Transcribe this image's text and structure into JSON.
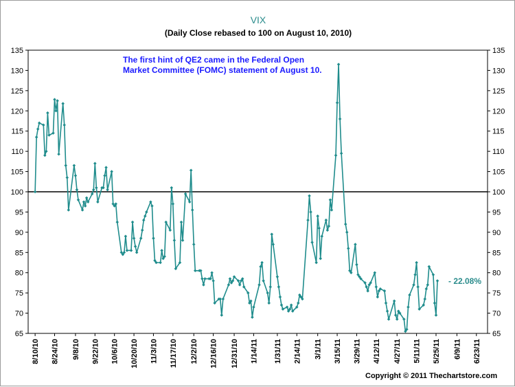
{
  "chart_data": {
    "type": "line",
    "title": "VIX",
    "subtitle": "(Daily Close rebased to 100 on August 10, 2010)",
    "annotation_lines": [
      "The first hint of QE2 came in the Federal Open",
      "Market Committee (FOMC) statement of August 10."
    ],
    "end_label": "- 22.08%",
    "copyright": "Copyright © 2011 Thechartstore.com",
    "ylim": [
      65,
      135
    ],
    "yticks": [
      65,
      70,
      75,
      80,
      85,
      90,
      95,
      100,
      105,
      110,
      115,
      120,
      125,
      130,
      135
    ],
    "reference_line": 100,
    "x_range": [
      "2010-08-05",
      "2011-07-01"
    ],
    "xticks": [
      "8/10/10",
      "8/24/10",
      "9/8/10",
      "9/22/10",
      "10/6/10",
      "10/20/10",
      "11/3/10",
      "11/17/10",
      "12/2/10",
      "12/16/10",
      "12/31/10",
      "1/14/11",
      "1/31/11",
      "2/14/11",
      "3/1/11",
      "3/15/11",
      "3/29/11",
      "4/12/11",
      "4/27/11",
      "5/11/11",
      "5/25/11",
      "6/9/11",
      "6/23/11"
    ],
    "line_color": "#1f8c8c",
    "reference_color": "#000000",
    "grid": false,
    "series": [
      {
        "values": [
          [
            "2010-08-10",
            100.0
          ],
          [
            "2010-08-11",
            113.5
          ],
          [
            "2010-08-12",
            115.5
          ],
          [
            "2010-08-13",
            117.0
          ],
          [
            "2010-08-16",
            116.5
          ],
          [
            "2010-08-17",
            109.0
          ],
          [
            "2010-08-18",
            110.0
          ],
          [
            "2010-08-19",
            119.5
          ],
          [
            "2010-08-20",
            114.0
          ],
          [
            "2010-08-23",
            114.5
          ],
          [
            "2010-08-24",
            122.8
          ],
          [
            "2010-08-25",
            120.0
          ],
          [
            "2010-08-26",
            122.5
          ],
          [
            "2010-08-27",
            109.3
          ],
          [
            "2010-08-30",
            121.8
          ],
          [
            "2010-08-31",
            116.5
          ],
          [
            "2010-09-01",
            106.5
          ],
          [
            "2010-09-02",
            103.5
          ],
          [
            "2010-09-03",
            95.5
          ],
          [
            "2010-09-07",
            106.5
          ],
          [
            "2010-09-08",
            104.0
          ],
          [
            "2010-09-09",
            100.5
          ],
          [
            "2010-09-10",
            98.0
          ],
          [
            "2010-09-13",
            95.5
          ],
          [
            "2010-09-14",
            97.5
          ],
          [
            "2010-09-15",
            96.5
          ],
          [
            "2010-09-16",
            98.5
          ],
          [
            "2010-09-17",
            97.5
          ],
          [
            "2010-09-20",
            99.5
          ],
          [
            "2010-09-21",
            100.5
          ],
          [
            "2010-09-22",
            107.0
          ],
          [
            "2010-09-23",
            101.0
          ],
          [
            "2010-09-24",
            97.5
          ],
          [
            "2010-09-27",
            101.0
          ],
          [
            "2010-09-28",
            101.0
          ],
          [
            "2010-09-29",
            104.0
          ],
          [
            "2010-09-30",
            106.0
          ],
          [
            "2010-10-01",
            100.5
          ],
          [
            "2010-10-04",
            105.0
          ],
          [
            "2010-10-05",
            97.0
          ],
          [
            "2010-10-06",
            96.5
          ],
          [
            "2010-10-07",
            97.0
          ],
          [
            "2010-10-08",
            92.5
          ],
          [
            "2010-10-11",
            85.0
          ],
          [
            "2010-10-12",
            84.5
          ],
          [
            "2010-10-13",
            85.0
          ],
          [
            "2010-10-14",
            89.0
          ],
          [
            "2010-10-15",
            85.5
          ],
          [
            "2010-10-18",
            85.5
          ],
          [
            "2010-10-19",
            92.5
          ],
          [
            "2010-10-20",
            88.5
          ],
          [
            "2010-10-21",
            86.5
          ],
          [
            "2010-10-22",
            85.0
          ],
          [
            "2010-10-25",
            88.5
          ],
          [
            "2010-10-26",
            90.5
          ],
          [
            "2010-10-27",
            93.0
          ],
          [
            "2010-10-28",
            94.0
          ],
          [
            "2010-10-29",
            95.0
          ],
          [
            "2010-11-01",
            97.5
          ],
          [
            "2010-11-02",
            96.5
          ],
          [
            "2010-11-03",
            88.5
          ],
          [
            "2010-11-04",
            83.0
          ],
          [
            "2010-11-05",
            82.5
          ],
          [
            "2010-11-08",
            82.5
          ],
          [
            "2010-11-09",
            85.5
          ],
          [
            "2010-11-10",
            83.5
          ],
          [
            "2010-11-11",
            84.0
          ],
          [
            "2010-11-12",
            92.5
          ],
          [
            "2010-11-15",
            90.5
          ],
          [
            "2010-11-16",
            101.0
          ],
          [
            "2010-11-17",
            97.0
          ],
          [
            "2010-11-18",
            88.0
          ],
          [
            "2010-11-19",
            81.0
          ],
          [
            "2010-11-22",
            82.5
          ],
          [
            "2010-11-23",
            92.5
          ],
          [
            "2010-11-24",
            88.0
          ],
          [
            "2010-11-26",
            99.5
          ],
          [
            "2010-11-29",
            97.5
          ],
          [
            "2010-11-30",
            105.3
          ],
          [
            "2010-12-01",
            95.5
          ],
          [
            "2010-12-02",
            87.0
          ],
          [
            "2010-12-03",
            80.5
          ],
          [
            "2010-12-06",
            80.5
          ],
          [
            "2010-12-07",
            80.5
          ],
          [
            "2010-12-08",
            78.5
          ],
          [
            "2010-12-09",
            77.0
          ],
          [
            "2010-12-10",
            78.5
          ],
          [
            "2010-12-13",
            78.5
          ],
          [
            "2010-12-14",
            78.5
          ],
          [
            "2010-12-15",
            80.0
          ],
          [
            "2010-12-16",
            78.0
          ],
          [
            "2010-12-17",
            72.5
          ],
          [
            "2010-12-20",
            73.5
          ],
          [
            "2010-12-21",
            73.5
          ],
          [
            "2010-12-22",
            69.5
          ],
          [
            "2010-12-23",
            73.5
          ],
          [
            "2010-12-27",
            77.0
          ],
          [
            "2010-12-28",
            78.5
          ],
          [
            "2010-12-29",
            77.5
          ],
          [
            "2010-12-30",
            78.0
          ],
          [
            "2010-12-31",
            79.0
          ],
          [
            "2011-01-03",
            78.0
          ],
          [
            "2011-01-04",
            77.0
          ],
          [
            "2011-01-05",
            78.0
          ],
          [
            "2011-01-06",
            78.5
          ],
          [
            "2011-01-07",
            76.5
          ],
          [
            "2011-01-10",
            75.0
          ],
          [
            "2011-01-11",
            72.5
          ],
          [
            "2011-01-12",
            73.0
          ],
          [
            "2011-01-13",
            69.0
          ],
          [
            "2011-01-14",
            71.5
          ],
          [
            "2011-01-18",
            77.0
          ],
          [
            "2011-01-19",
            81.5
          ],
          [
            "2011-01-20",
            82.5
          ],
          [
            "2011-01-21",
            78.0
          ],
          [
            "2011-01-24",
            75.0
          ],
          [
            "2011-01-25",
            72.5
          ],
          [
            "2011-01-26",
            76.5
          ],
          [
            "2011-01-27",
            89.5
          ],
          [
            "2011-01-28",
            87.0
          ],
          [
            "2011-01-31",
            79.0
          ],
          [
            "2011-02-01",
            76.5
          ],
          [
            "2011-02-02",
            74.0
          ],
          [
            "2011-02-03",
            72.0
          ],
          [
            "2011-02-04",
            71.0
          ],
          [
            "2011-02-07",
            71.5
          ],
          [
            "2011-02-08",
            70.5
          ],
          [
            "2011-02-09",
            71.0
          ],
          [
            "2011-02-10",
            72.0
          ],
          [
            "2011-02-11",
            70.5
          ],
          [
            "2011-02-14",
            71.5
          ],
          [
            "2011-02-15",
            72.5
          ],
          [
            "2011-02-16",
            74.5
          ],
          [
            "2011-02-17",
            74.0
          ],
          [
            "2011-02-18",
            73.5
          ],
          [
            "2011-02-22",
            93.0
          ],
          [
            "2011-02-23",
            99.0
          ],
          [
            "2011-02-24",
            95.0
          ],
          [
            "2011-02-25",
            87.5
          ],
          [
            "2011-02-28",
            82.5
          ],
          [
            "2011-03-01",
            94.0
          ],
          [
            "2011-03-02",
            91.0
          ],
          [
            "2011-03-03",
            83.5
          ],
          [
            "2011-03-04",
            89.0
          ],
          [
            "2011-03-07",
            93.0
          ],
          [
            "2011-03-08",
            90.5
          ],
          [
            "2011-03-09",
            91.5
          ],
          [
            "2011-03-10",
            98.0
          ],
          [
            "2011-03-11",
            95.5
          ],
          [
            "2011-03-14",
            109.0
          ],
          [
            "2011-03-15",
            122.0
          ],
          [
            "2011-03-16",
            131.5
          ],
          [
            "2011-03-17",
            118.0
          ],
          [
            "2011-03-18",
            109.5
          ],
          [
            "2011-03-21",
            92.0
          ],
          [
            "2011-03-22",
            90.0
          ],
          [
            "2011-03-23",
            86.0
          ],
          [
            "2011-03-24",
            80.5
          ],
          [
            "2011-03-25",
            80.0
          ],
          [
            "2011-03-28",
            87.0
          ],
          [
            "2011-03-29",
            82.0
          ],
          [
            "2011-03-30",
            79.5
          ],
          [
            "2011-03-31",
            79.0
          ],
          [
            "2011-04-01",
            78.5
          ],
          [
            "2011-04-04",
            77.5
          ],
          [
            "2011-04-05",
            76.5
          ],
          [
            "2011-04-06",
            75.5
          ],
          [
            "2011-04-07",
            77.0
          ],
          [
            "2011-04-08",
            77.5
          ],
          [
            "2011-04-11",
            80.0
          ],
          [
            "2011-04-12",
            76.5
          ],
          [
            "2011-04-13",
            74.0
          ],
          [
            "2011-04-14",
            75.5
          ],
          [
            "2011-04-15",
            76.0
          ],
          [
            "2011-04-18",
            75.5
          ],
          [
            "2011-04-19",
            72.5
          ],
          [
            "2011-04-20",
            70.5
          ],
          [
            "2011-04-21",
            68.5
          ],
          [
            "2011-04-25",
            73.0
          ],
          [
            "2011-04-26",
            69.5
          ],
          [
            "2011-04-27",
            68.5
          ],
          [
            "2011-04-28",
            70.5
          ],
          [
            "2011-04-29",
            70.0
          ],
          [
            "2011-05-02",
            68.5
          ],
          [
            "2011-05-03",
            65.5
          ],
          [
            "2011-05-04",
            66.0
          ],
          [
            "2011-05-05",
            71.5
          ],
          [
            "2011-05-06",
            74.5
          ],
          [
            "2011-05-09",
            77.0
          ],
          [
            "2011-05-10",
            79.5
          ],
          [
            "2011-05-11",
            82.5
          ],
          [
            "2011-05-12",
            76.5
          ],
          [
            "2011-05-13",
            71.0
          ],
          [
            "2011-05-16",
            72.0
          ],
          [
            "2011-05-17",
            73.5
          ],
          [
            "2011-05-18",
            76.0
          ],
          [
            "2011-05-19",
            77.0
          ],
          [
            "2011-05-20",
            81.5
          ],
          [
            "2011-05-23",
            79.5
          ],
          [
            "2011-05-24",
            72.5
          ],
          [
            "2011-05-25",
            69.5
          ],
          [
            "2011-05-26",
            78.0
          ]
        ]
      }
    ]
  }
}
